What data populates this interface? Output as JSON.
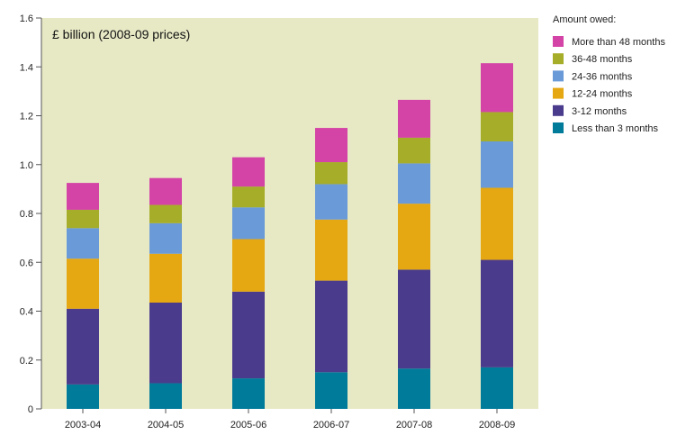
{
  "chart_data": {
    "type": "bar",
    "stacked": true,
    "unit_label": "£ billion (2008-09 prices)",
    "categories": [
      "2003-04",
      "2004-05",
      "2005-06",
      "2006-07",
      "2007-08",
      "2008-09"
    ],
    "ylim": [
      0,
      1.6
    ],
    "yticks": [
      "0",
      "0.2",
      "0.4",
      "0.6",
      "0.8",
      "1.0",
      "1.2",
      "1.4",
      "1.6"
    ],
    "grid": false,
    "legend_position": "right",
    "legend_title": "Amount owed:",
    "series": [
      {
        "name": "Less than 3 months",
        "color": "#007b9a",
        "values": [
          0.1,
          0.105,
          0.125,
          0.15,
          0.165,
          0.17
        ]
      },
      {
        "name": "3-12 months",
        "color": "#4a3b8c",
        "values": [
          0.31,
          0.33,
          0.355,
          0.375,
          0.405,
          0.44
        ]
      },
      {
        "name": "12-24 months",
        "color": "#e5a712",
        "values": [
          0.205,
          0.2,
          0.215,
          0.25,
          0.27,
          0.295
        ]
      },
      {
        "name": "24-36 months",
        "color": "#6a9ad7",
        "values": [
          0.125,
          0.125,
          0.13,
          0.145,
          0.165,
          0.19
        ]
      },
      {
        "name": "36-48 months",
        "color": "#a6ad28",
        "values": [
          0.075,
          0.075,
          0.085,
          0.09,
          0.105,
          0.12
        ]
      },
      {
        "name": "More than 48 months",
        "color": "#d444a6",
        "values": [
          0.11,
          0.11,
          0.12,
          0.14,
          0.155,
          0.2
        ]
      }
    ],
    "legend_order": [
      "More than 48 months",
      "36-48 months",
      "24-36 months",
      "12-24 months",
      "3-12 months",
      "Less than 3 months"
    ],
    "colors": {
      "plot_background": "#e7e9c5",
      "axis": "#555555"
    }
  }
}
